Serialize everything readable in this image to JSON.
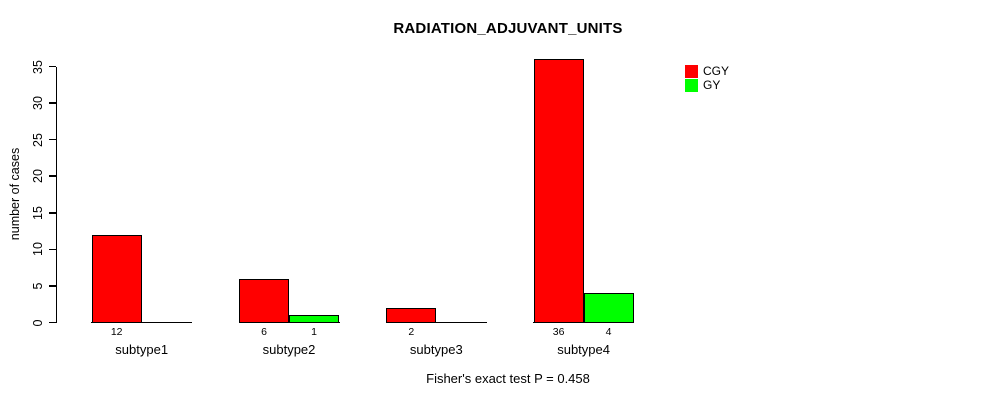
{
  "title": "RADIATION_ADJUVANT_UNITS",
  "footer": "Fisher's exact test P = 0.458",
  "colors": {
    "cgy": "#ff0000",
    "gy": "#00ff00",
    "axis": "#000000",
    "background": "#ffffff"
  },
  "legend": [
    {
      "label": "CGY",
      "color": "#ff0000"
    },
    {
      "label": "GY",
      "color": "#00ff00"
    }
  ],
  "chart_data": {
    "type": "bar",
    "title": "RADIATION_ADJUVANT_UNITS",
    "xlabel": "",
    "ylabel": "number of cases",
    "categories": [
      "subtype1",
      "subtype2",
      "subtype3",
      "subtype4"
    ],
    "series": [
      {
        "name": "CGY",
        "color": "#ff0000",
        "values": [
          12,
          6,
          2,
          36
        ]
      },
      {
        "name": "GY",
        "color": "#00ff00",
        "values": [
          0,
          1,
          0,
          4
        ]
      }
    ],
    "bar_value_labels": [
      [
        "12",
        ""
      ],
      [
        "6",
        "1"
      ],
      [
        "2",
        ""
      ],
      [
        "36",
        "4"
      ]
    ],
    "yticks": [
      0,
      5,
      10,
      15,
      20,
      25,
      30,
      35
    ],
    "ylim": [
      0,
      36
    ],
    "grid": false,
    "legend_position": "top-right",
    "annotation": "Fisher's exact test P = 0.458"
  }
}
